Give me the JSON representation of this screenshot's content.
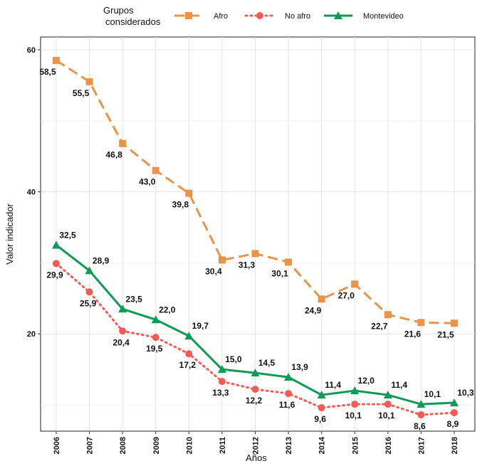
{
  "chart_data": {
    "type": "line",
    "legend_title": [
      "Grupos",
      "considerados"
    ],
    "x_label": "Años",
    "y_label": "Valor indicador",
    "categories": [
      "2006",
      "2007",
      "2008",
      "2009",
      "2010",
      "2011",
      "2012",
      "2013",
      "2014",
      "2015",
      "2016",
      "2017",
      "2018"
    ],
    "series": [
      {
        "name": "Afro",
        "color": "#e8944a",
        "line_style": "dashed",
        "marker": "square",
        "values": [
          58.5,
          55.5,
          46.8,
          43.0,
          39.8,
          30.4,
          31.3,
          30.1,
          24.9,
          27.0,
          22.7,
          21.6,
          21.5
        ],
        "value_labels": [
          "58,5",
          "55,5",
          "46,8",
          "43,0",
          "39,8",
          "30,4",
          "31,3",
          "30,1",
          "24,9",
          "27,0",
          "22,7",
          "21,6",
          "21,5"
        ]
      },
      {
        "name": "No afro",
        "color": "#f25c54",
        "line_style": "dotted",
        "marker": "circle",
        "values": [
          29.9,
          25.9,
          20.4,
          19.5,
          17.2,
          13.3,
          12.2,
          11.6,
          9.6,
          10.1,
          10.1,
          8.6,
          8.9
        ],
        "value_labels": [
          "29,9",
          "25,9",
          "20,4",
          "19,5",
          "17,2",
          "13,3",
          "12,2",
          "11,6",
          "9,6",
          "10,1",
          "10,1",
          "8,6",
          "8,9"
        ]
      },
      {
        "name": "Montevideo",
        "color": "#119a55",
        "line_style": "solid",
        "marker": "triangle",
        "values": [
          32.5,
          28.9,
          23.5,
          22.0,
          19.7,
          15.0,
          14.5,
          13.9,
          11.4,
          12.0,
          11.4,
          10.1,
          10.3
        ],
        "value_labels": [
          "32,5",
          "28,9",
          "23,5",
          "22,0",
          "19,7",
          "15,0",
          "14,5",
          "13,9",
          "11,4",
          "12,0",
          "11,4",
          "10,1",
          "10,3"
        ]
      }
    ],
    "ylim": [
      6.3,
      61.8
    ],
    "yticks": [
      20,
      40,
      60
    ],
    "minor_grid": [
      10,
      30,
      50
    ],
    "grid": true,
    "legend": "top"
  }
}
